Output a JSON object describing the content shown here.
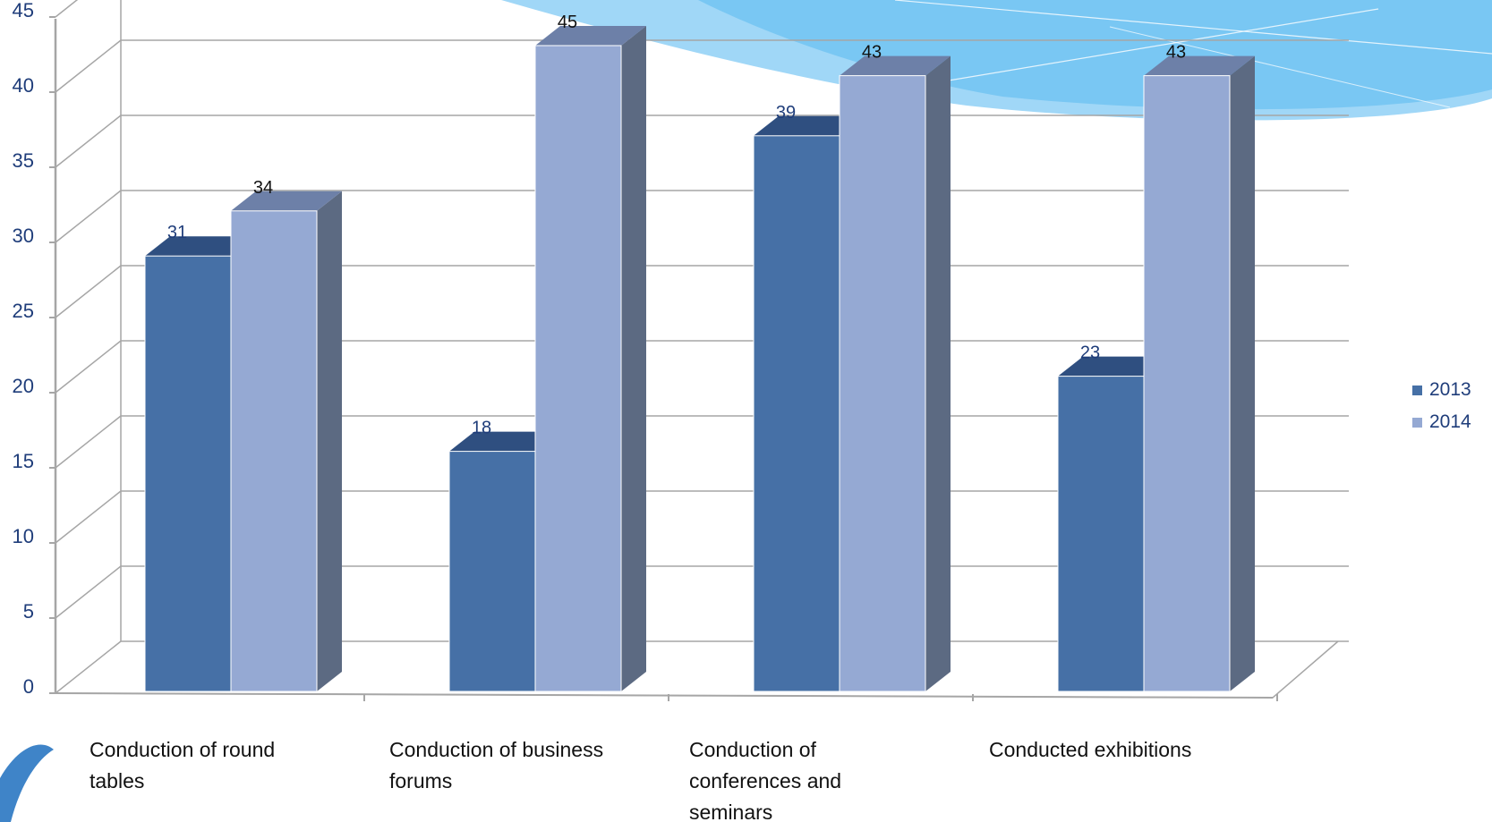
{
  "chart_data": {
    "type": "bar",
    "style": "3d-clustered-column",
    "categories": [
      "Conduction of round tables",
      "Conduction of business forums",
      "Conduction of conferences and seminars",
      "Conducted exhibitions"
    ],
    "series": [
      {
        "name": "2013",
        "values": [
          31,
          18,
          39,
          23
        ]
      },
      {
        "name": "2014",
        "values": [
          34,
          45,
          43,
          43
        ]
      }
    ],
    "y_ticks": [
      "0",
      "5",
      "10",
      "15",
      "20",
      "25",
      "30",
      "35",
      "40",
      "45"
    ],
    "ylim": [
      0,
      50
    ],
    "grid": true,
    "legend_position": "right",
    "title": "",
    "xlabel": "",
    "ylabel": ""
  },
  "colors": {
    "series_2013": "#4670a6",
    "series_2013_top": "#2f4f80",
    "series_2014": "#95a9d3",
    "series_2014_top": "#6d80a8",
    "bar_side": "#5c6a82",
    "grid": "#a6a6a6",
    "tick_text": "#1f3d7a",
    "label_text": "#1f3d7a",
    "deco_swoosh": "#74c2f2"
  }
}
